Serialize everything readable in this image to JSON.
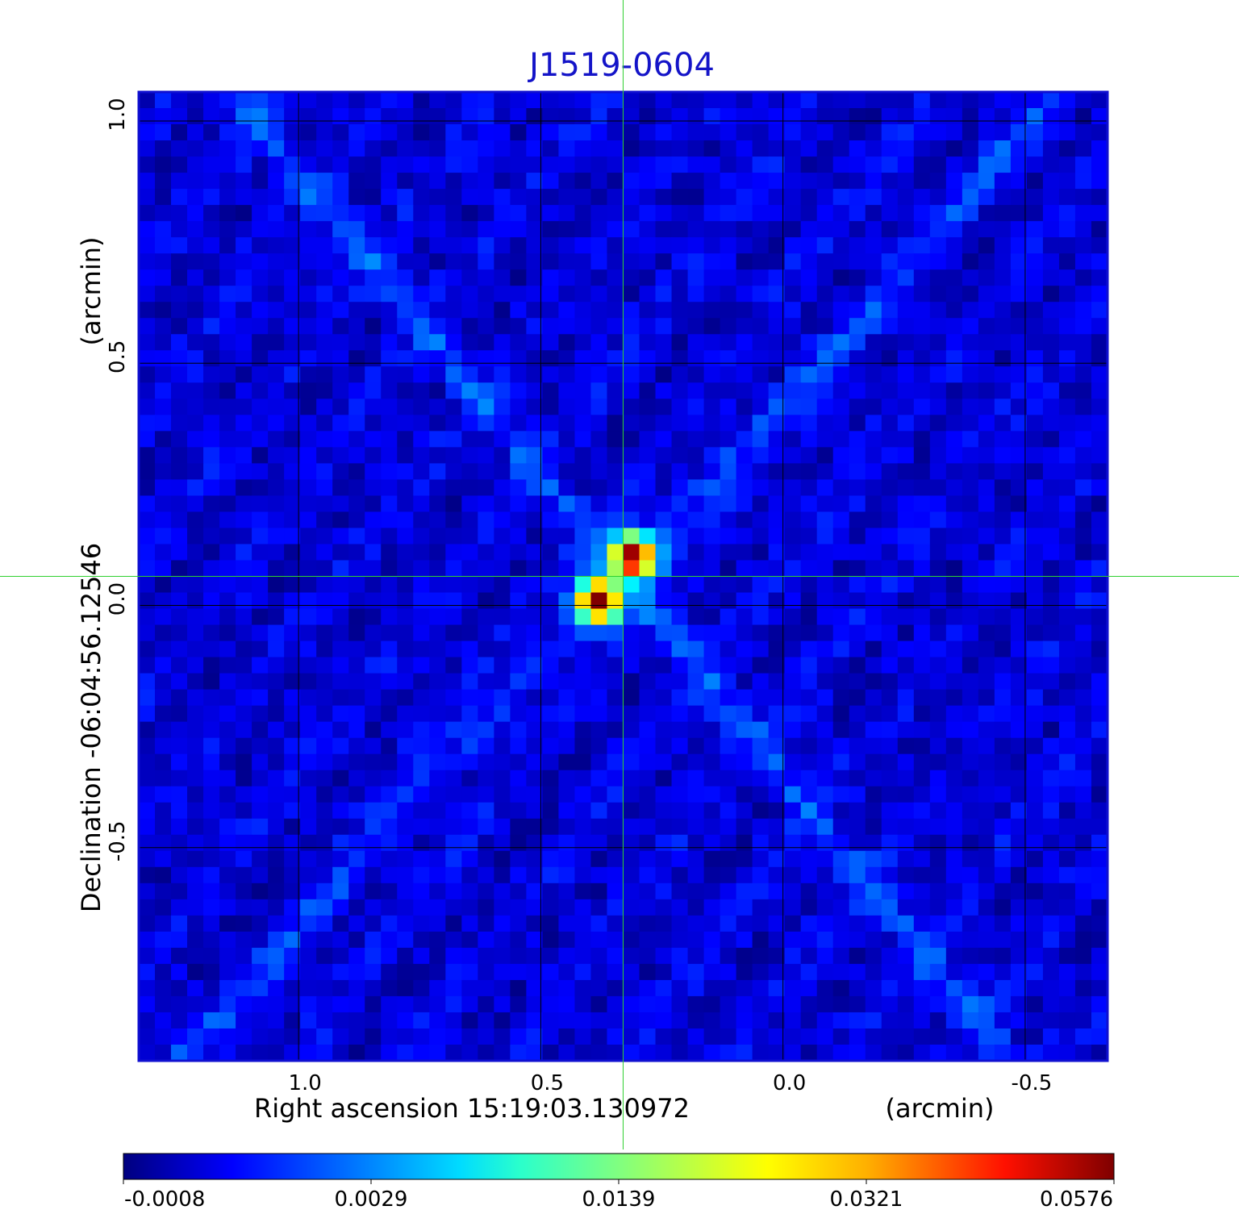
{
  "chart_data": {
    "type": "heatmap",
    "title": "J1519-0604",
    "xlabel": "Right ascension  15:19:03.130972",
    "xunit": "(arcmin)",
    "ylabel": "Declination  -06:04:56.12546",
    "yunit": "(arcmin)",
    "xlim": [
      1.33,
      -0.67
    ],
    "ylim": [
      -0.94,
      1.06
    ],
    "x_ticks": [
      1.0,
      0.5,
      0.0,
      -0.5
    ],
    "x_tick_labels": [
      "1.0",
      "0.5",
      "0.0",
      "-0.5"
    ],
    "y_ticks": [
      1.0,
      0.5,
      0.0,
      -0.5
    ],
    "y_tick_labels": [
      "1.0",
      "0.5",
      "0.0",
      "-0.5"
    ],
    "grid": true,
    "crosshair": {
      "x": 0.33,
      "y": 0.06,
      "color": "#30d030"
    },
    "colormap": "jet",
    "colorbar": {
      "orientation": "horizontal",
      "ticks": [
        "-0.0008",
        "0.0029",
        "0.0139",
        "0.0321",
        "0.0576"
      ],
      "min": -0.0008,
      "max": 0.0576
    },
    "sources": [
      {
        "x": 0.38,
        "y": 0.01,
        "peak": 0.0576
      },
      {
        "x": 0.31,
        "y": 0.1,
        "peak": 0.0576
      }
    ],
    "background_level": 0.0005
  }
}
